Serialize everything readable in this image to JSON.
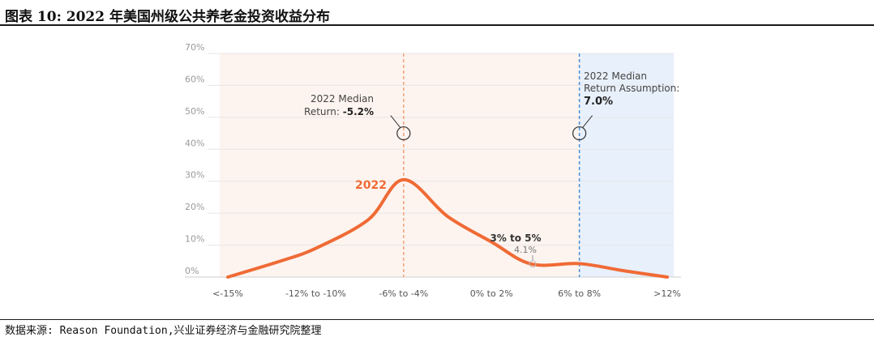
{
  "header": {
    "title": "图表 10: 2022 年美国州级公共养老金投资收益分布"
  },
  "footer": {
    "source": "数据来源: Reason Foundation,兴业证券经济与金融研究院整理"
  },
  "colors": {
    "curve": "#f06a35",
    "median_line": "#f2a27a",
    "assumption_line": "#4a90d9",
    "left_bg": "#fdf4ef",
    "right_bg": "#e8f0fb",
    "grid": "#e6e6e6"
  },
  "chart_data": {
    "type": "area",
    "title": "",
    "xlabel": "",
    "ylabel": "",
    "ylim": [
      0,
      70
    ],
    "y_ticks": [
      "0%",
      "10%",
      "20%",
      "30%",
      "40%",
      "50%",
      "60%",
      "70%"
    ],
    "categories": [
      "<-15%",
      "-12% to -10%",
      "-6% to -4%",
      "0% to 2%",
      "6% to 8%",
      ">12%"
    ],
    "grid": true,
    "series": [
      {
        "name": "2022",
        "points": [
          [
            0,
            0
          ],
          [
            0.6,
            5
          ],
          [
            1,
            9
          ],
          [
            1.6,
            18
          ],
          [
            2,
            30.5
          ],
          [
            2.5,
            19
          ],
          [
            3,
            11
          ],
          [
            3.45,
            4.1
          ],
          [
            4,
            4.2
          ],
          [
            4.5,
            2
          ],
          [
            5,
            0
          ]
        ]
      }
    ],
    "annotations": {
      "median": {
        "label_line1": "2022 Median",
        "label_line2_prefix": "Return: ",
        "value": "-5.2%",
        "x": 2,
        "y": 45
      },
      "assumption": {
        "label_line1": "2022 Median",
        "label_line2": "Return Assumption:",
        "value": "7.0%",
        "x": 4,
        "y": 45
      },
      "series_label": "2022",
      "range_label": "3% to 5%",
      "range_value": "4.1%"
    }
  }
}
